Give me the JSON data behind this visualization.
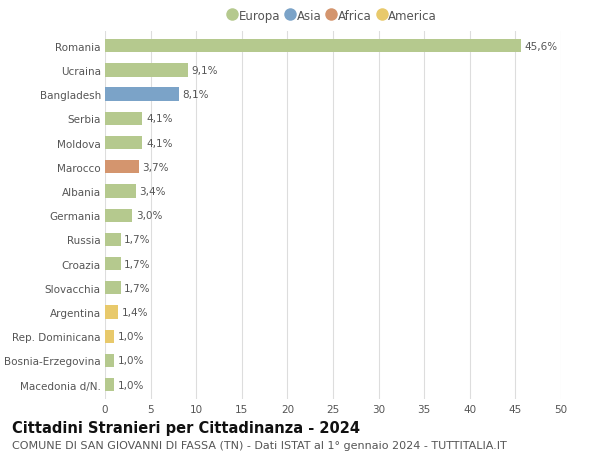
{
  "categories": [
    "Romania",
    "Ucraina",
    "Bangladesh",
    "Serbia",
    "Moldova",
    "Marocco",
    "Albania",
    "Germania",
    "Russia",
    "Croazia",
    "Slovacchia",
    "Argentina",
    "Rep. Dominicana",
    "Bosnia-Erzegovina",
    "Macedonia d/N."
  ],
  "values": [
    45.6,
    9.1,
    8.1,
    4.1,
    4.1,
    3.7,
    3.4,
    3.0,
    1.7,
    1.7,
    1.7,
    1.4,
    1.0,
    1.0,
    1.0
  ],
  "labels": [
    "45,6%",
    "9,1%",
    "8,1%",
    "4,1%",
    "4,1%",
    "3,7%",
    "3,4%",
    "3,0%",
    "1,7%",
    "1,7%",
    "1,7%",
    "1,4%",
    "1,0%",
    "1,0%",
    "1,0%"
  ],
  "continents": [
    "Europa",
    "Europa",
    "Asia",
    "Europa",
    "Europa",
    "Africa",
    "Europa",
    "Europa",
    "Europa",
    "Europa",
    "Europa",
    "America",
    "America",
    "Europa",
    "Europa"
  ],
  "continent_colors": {
    "Europa": "#b5c98e",
    "Asia": "#7ba3c8",
    "Africa": "#d4956e",
    "America": "#e8c96b"
  },
  "legend_order": [
    "Europa",
    "Asia",
    "Africa",
    "America"
  ],
  "title": "Cittadini Stranieri per Cittadinanza - 2024",
  "subtitle": "COMUNE DI SAN GIOVANNI DI FASSA (TN) - Dati ISTAT al 1° gennaio 2024 - TUTTITALIA.IT",
  "xlim": [
    0,
    50
  ],
  "xticks": [
    0,
    5,
    10,
    15,
    20,
    25,
    30,
    35,
    40,
    45,
    50
  ],
  "background_color": "#ffffff",
  "grid_color": "#dddddd",
  "bar_height": 0.55,
  "title_fontsize": 10.5,
  "subtitle_fontsize": 8,
  "label_fontsize": 7.5,
  "tick_fontsize": 7.5,
  "legend_fontsize": 8.5
}
